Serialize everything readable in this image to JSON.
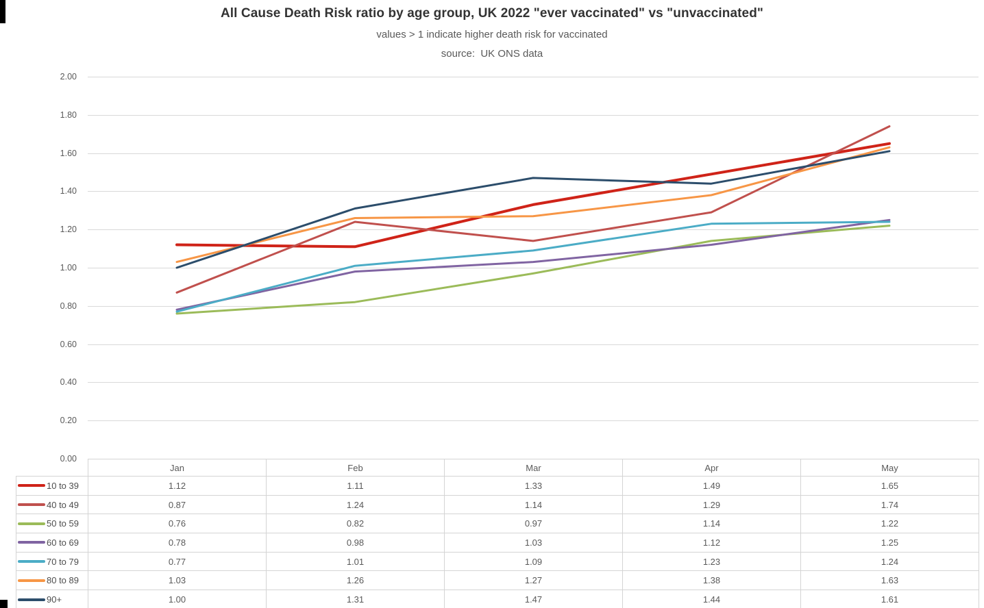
{
  "page": {
    "title": "All Cause Death Risk ratio by age group, UK 2022 \"ever vaccinated\" vs \"unvaccinated\"",
    "subtitle": "values > 1 indicate higher death risk for vaccinated",
    "source": "source:  UK ONS data"
  },
  "chart_data": {
    "type": "line",
    "title": "All Cause Death Risk ratio by age group, UK 2022 \"ever vaccinated\" vs \"unvaccinated\"",
    "subtitle": "values > 1 indicate higher death risk for vaccinated",
    "source_note": "source: UK ONS data",
    "categories": [
      "Jan",
      "Feb",
      "Mar",
      "Apr",
      "May"
    ],
    "series": [
      {
        "name": "10 to 39",
        "color": "#cf2318",
        "thick": true,
        "values": [
          1.12,
          1.11,
          1.33,
          1.49,
          1.65
        ]
      },
      {
        "name": "40 to 49",
        "color": "#c0504d",
        "thick": false,
        "values": [
          0.87,
          1.24,
          1.14,
          1.29,
          1.74
        ]
      },
      {
        "name": "50 to 59",
        "color": "#9bbb59",
        "thick": false,
        "values": [
          0.76,
          0.82,
          0.97,
          1.14,
          1.22
        ]
      },
      {
        "name": "60 to 69",
        "color": "#8064a2",
        "thick": false,
        "values": [
          0.78,
          0.98,
          1.03,
          1.12,
          1.25
        ]
      },
      {
        "name": "70 to 79",
        "color": "#4bacc6",
        "thick": false,
        "values": [
          0.77,
          1.01,
          1.09,
          1.23,
          1.24
        ]
      },
      {
        "name": "80 to 89",
        "color": "#f79646",
        "thick": false,
        "values": [
          1.03,
          1.26,
          1.27,
          1.38,
          1.63
        ]
      },
      {
        "name": "90+",
        "color": "#2c4d6b",
        "thick": false,
        "values": [
          1.0,
          1.31,
          1.47,
          1.44,
          1.61
        ]
      }
    ],
    "ylim": [
      0,
      2
    ],
    "ytick_step": 0.2,
    "ytick_labels": [
      "0.00",
      "0.20",
      "0.40",
      "0.60",
      "0.80",
      "1.00",
      "1.20",
      "1.40",
      "1.60",
      "1.80",
      "2.00"
    ],
    "grid": true,
    "gridline_color": "#d9d9d9",
    "legend_position": "table-left",
    "value_format_decimals": 2
  }
}
